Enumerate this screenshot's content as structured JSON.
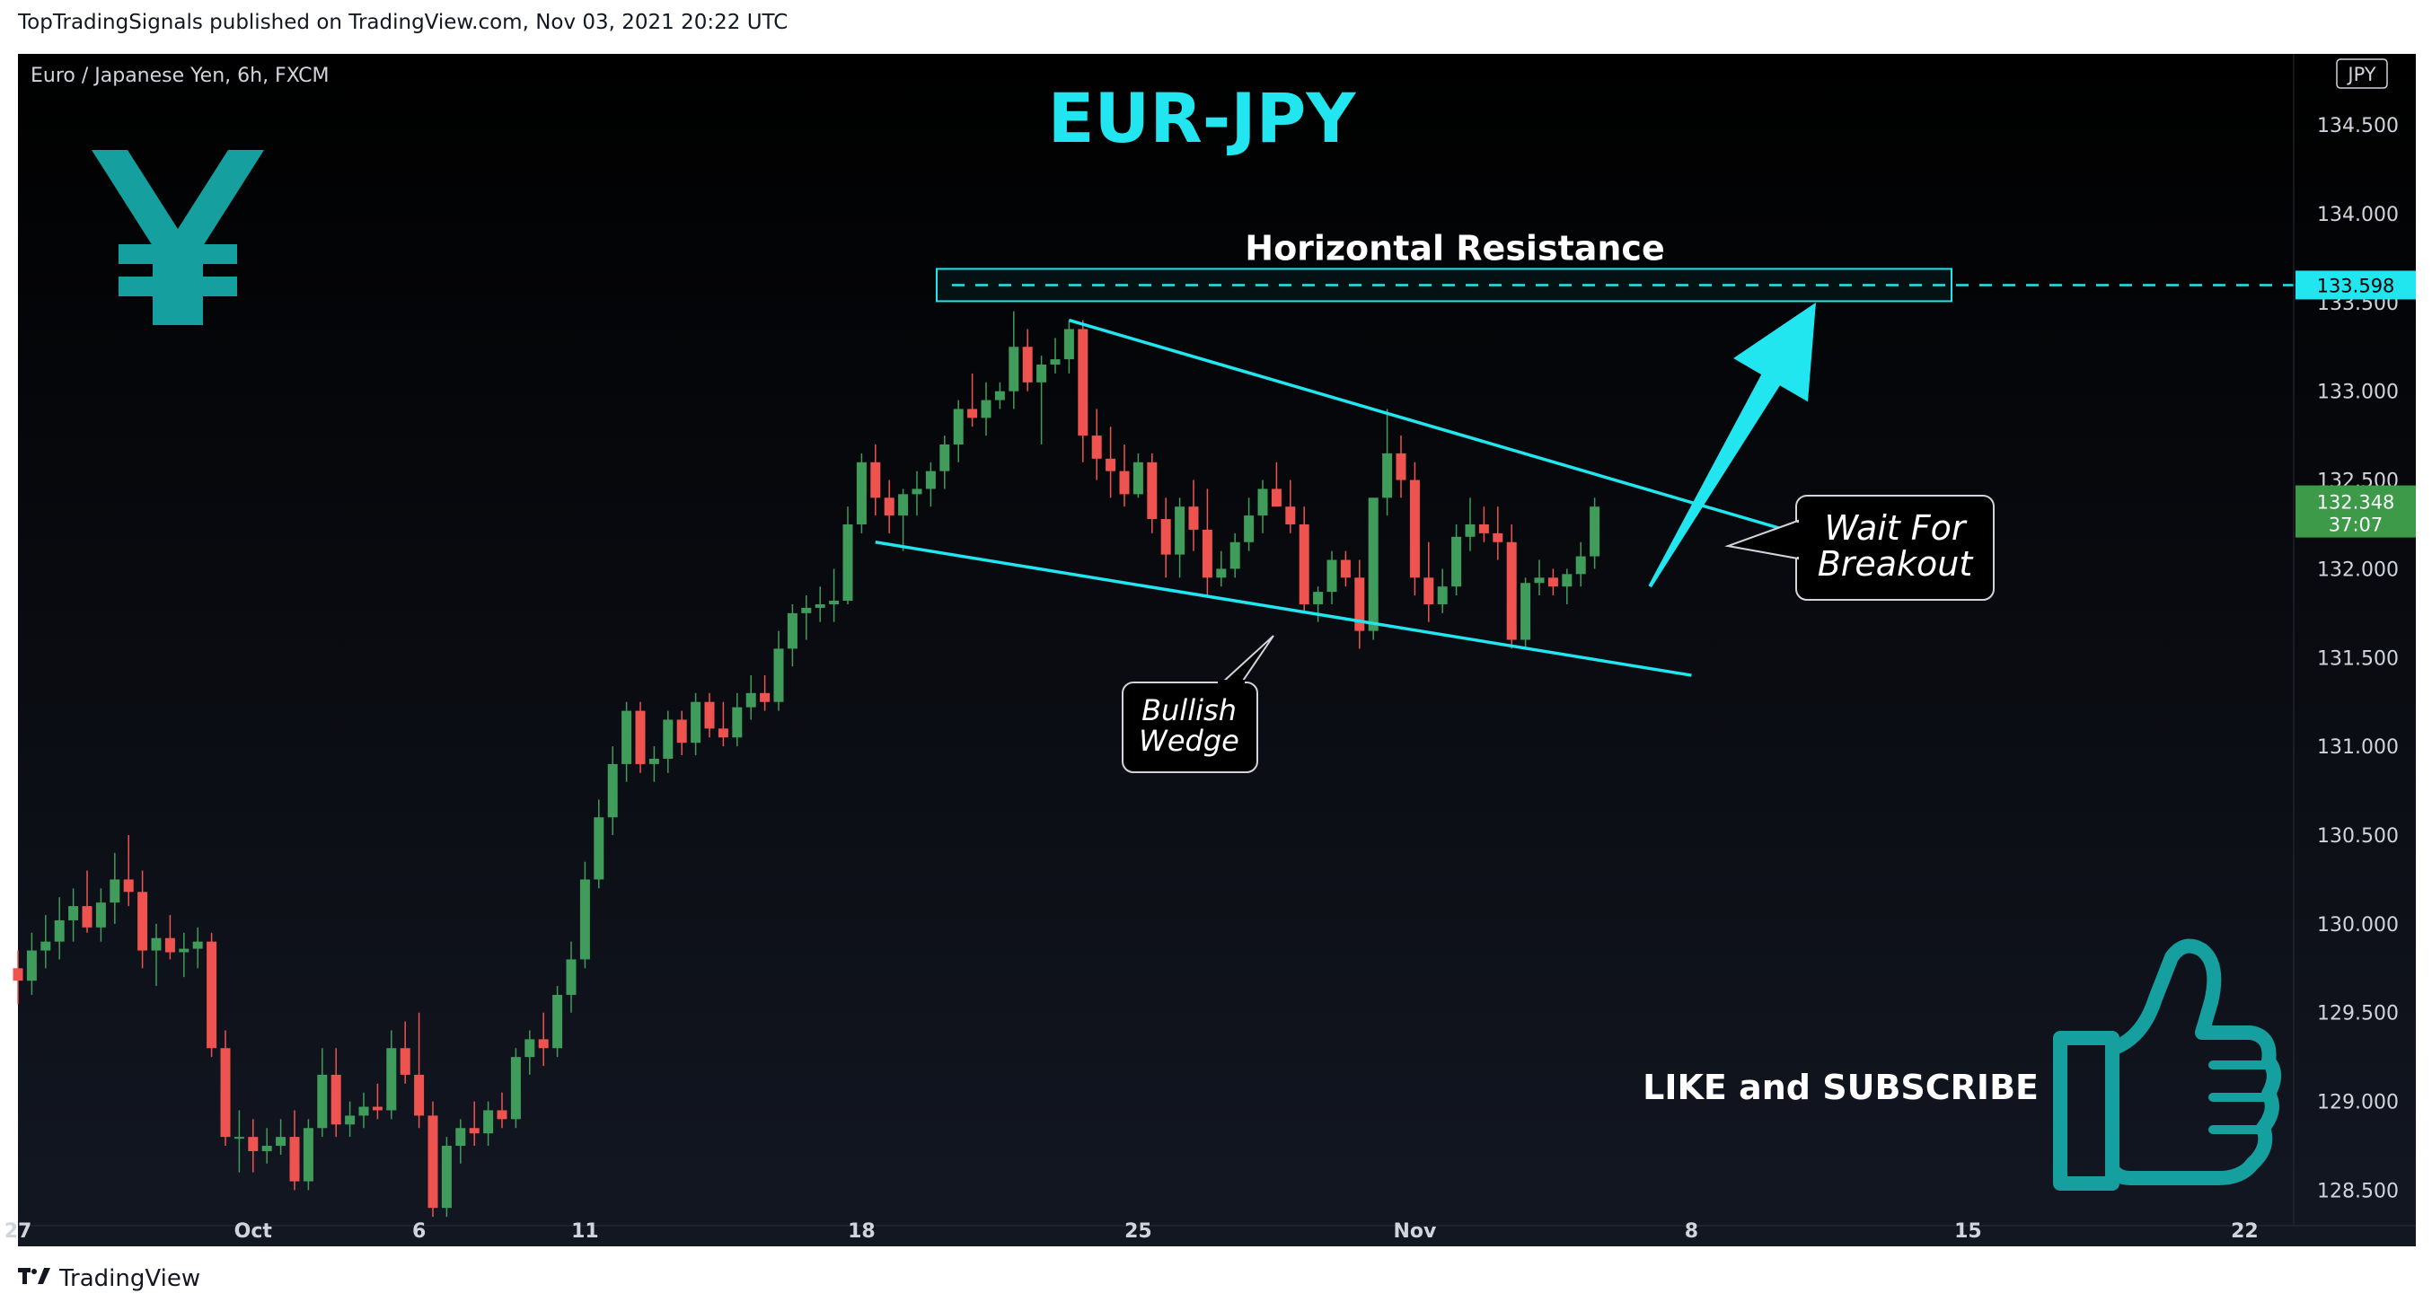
{
  "header": {
    "attribution": "TopTradingSignals published on TradingView.com, Nov 03, 2021 20:22 UTC"
  },
  "footer": {
    "brand": "TradingView"
  },
  "colors": {
    "up": "#26a69a",
    "up_candle": "#3f9c5b",
    "down": "#ef5350",
    "accent": "#21e6f0",
    "price_tag_bg": "#3d9a48",
    "annotation_bg": "#000000"
  },
  "icons": [
    "yen-icon",
    "thumbs-up-icon",
    "tradingview-logo-icon"
  ],
  "chart_data": {
    "type": "candlestick",
    "symbol_label": "Euro / Japanese Yen, 6h, FXCM",
    "title": "EUR-JPY",
    "currency_label": "JPY",
    "y_ticks": [
      "134.500",
      "134.000",
      "133.500",
      "133.000",
      "132.500",
      "132.000",
      "131.500",
      "131.000",
      "130.500",
      "130.000",
      "129.500",
      "129.000",
      "128.500"
    ],
    "ylim": [
      128.3,
      134.9
    ],
    "x_ticks": [
      {
        "label": "27",
        "i": 0
      },
      {
        "label": "Oct",
        "i": 17
      },
      {
        "label": "6",
        "i": 29
      },
      {
        "label": "11",
        "i": 41
      },
      {
        "label": "18",
        "i": 61
      },
      {
        "label": "25",
        "i": 81
      },
      {
        "label": "Nov",
        "i": 101
      },
      {
        "label": "8",
        "i": 121
      },
      {
        "label": "15",
        "i": 141
      },
      {
        "label": "22",
        "i": 161
      }
    ],
    "candles": [
      {
        "o": 129.75,
        "h": 129.85,
        "l": 129.55,
        "c": 129.68
      },
      {
        "o": 129.68,
        "h": 129.95,
        "l": 129.6,
        "c": 129.85
      },
      {
        "o": 129.85,
        "h": 130.05,
        "l": 129.75,
        "c": 129.9
      },
      {
        "o": 129.9,
        "h": 130.15,
        "l": 129.8,
        "c": 130.02
      },
      {
        "o": 130.02,
        "h": 130.2,
        "l": 129.9,
        "c": 130.1
      },
      {
        "o": 130.1,
        "h": 130.3,
        "l": 129.95,
        "c": 129.98
      },
      {
        "o": 129.98,
        "h": 130.2,
        "l": 129.9,
        "c": 130.12
      },
      {
        "o": 130.12,
        "h": 130.4,
        "l": 130.0,
        "c": 130.25
      },
      {
        "o": 130.25,
        "h": 130.5,
        "l": 130.1,
        "c": 130.18
      },
      {
        "o": 130.18,
        "h": 130.3,
        "l": 129.75,
        "c": 129.85
      },
      {
        "o": 129.85,
        "h": 130.0,
        "l": 129.65,
        "c": 129.92
      },
      {
        "o": 129.92,
        "h": 130.05,
        "l": 129.8,
        "c": 129.84
      },
      {
        "o": 129.84,
        "h": 129.95,
        "l": 129.7,
        "c": 129.86
      },
      {
        "o": 129.86,
        "h": 129.98,
        "l": 129.75,
        "c": 129.9
      },
      {
        "o": 129.9,
        "h": 129.95,
        "l": 129.25,
        "c": 129.3
      },
      {
        "o": 129.3,
        "h": 129.4,
        "l": 128.75,
        "c": 128.8
      },
      {
        "o": 128.8,
        "h": 128.95,
        "l": 128.6,
        "c": 128.8
      },
      {
        "o": 128.8,
        "h": 128.9,
        "l": 128.6,
        "c": 128.72
      },
      {
        "o": 128.72,
        "h": 128.85,
        "l": 128.65,
        "c": 128.75
      },
      {
        "o": 128.75,
        "h": 128.9,
        "l": 128.7,
        "c": 128.8
      },
      {
        "o": 128.8,
        "h": 128.95,
        "l": 128.5,
        "c": 128.55
      },
      {
        "o": 128.55,
        "h": 128.9,
        "l": 128.5,
        "c": 128.85
      },
      {
        "o": 128.85,
        "h": 129.3,
        "l": 128.8,
        "c": 129.15
      },
      {
        "o": 129.15,
        "h": 129.3,
        "l": 128.8,
        "c": 128.87
      },
      {
        "o": 128.87,
        "h": 129.0,
        "l": 128.8,
        "c": 128.92
      },
      {
        "o": 128.92,
        "h": 129.05,
        "l": 128.85,
        "c": 128.97
      },
      {
        "o": 128.97,
        "h": 129.1,
        "l": 128.9,
        "c": 128.95
      },
      {
        "o": 128.95,
        "h": 129.4,
        "l": 128.9,
        "c": 129.3
      },
      {
        "o": 129.3,
        "h": 129.45,
        "l": 129.1,
        "c": 129.15
      },
      {
        "o": 129.15,
        "h": 129.5,
        "l": 128.85,
        "c": 128.92
      },
      {
        "o": 128.92,
        "h": 129.0,
        "l": 128.35,
        "c": 128.4
      },
      {
        "o": 128.4,
        "h": 128.8,
        "l": 128.35,
        "c": 128.75
      },
      {
        "o": 128.75,
        "h": 128.9,
        "l": 128.65,
        "c": 128.85
      },
      {
        "o": 128.85,
        "h": 129.0,
        "l": 128.75,
        "c": 128.82
      },
      {
        "o": 128.82,
        "h": 129.0,
        "l": 128.75,
        "c": 128.95
      },
      {
        "o": 128.95,
        "h": 129.05,
        "l": 128.85,
        "c": 128.9
      },
      {
        "o": 128.9,
        "h": 129.3,
        "l": 128.85,
        "c": 129.25
      },
      {
        "o": 129.25,
        "h": 129.4,
        "l": 129.15,
        "c": 129.35
      },
      {
        "o": 129.35,
        "h": 129.5,
        "l": 129.2,
        "c": 129.3
      },
      {
        "o": 129.3,
        "h": 129.65,
        "l": 129.25,
        "c": 129.6
      },
      {
        "o": 129.6,
        "h": 129.9,
        "l": 129.5,
        "c": 129.8
      },
      {
        "o": 129.8,
        "h": 130.35,
        "l": 129.75,
        "c": 130.25
      },
      {
        "o": 130.25,
        "h": 130.7,
        "l": 130.2,
        "c": 130.6
      },
      {
        "o": 130.6,
        "h": 131.0,
        "l": 130.5,
        "c": 130.9
      },
      {
        "o": 130.9,
        "h": 131.25,
        "l": 130.8,
        "c": 131.2
      },
      {
        "o": 131.2,
        "h": 131.25,
        "l": 130.85,
        "c": 130.9
      },
      {
        "o": 130.9,
        "h": 131.0,
        "l": 130.8,
        "c": 130.93
      },
      {
        "o": 130.93,
        "h": 131.2,
        "l": 130.85,
        "c": 131.15
      },
      {
        "o": 131.15,
        "h": 131.2,
        "l": 130.95,
        "c": 131.02
      },
      {
        "o": 131.02,
        "h": 131.3,
        "l": 130.95,
        "c": 131.25
      },
      {
        "o": 131.25,
        "h": 131.3,
        "l": 131.05,
        "c": 131.1
      },
      {
        "o": 131.1,
        "h": 131.25,
        "l": 131.0,
        "c": 131.05
      },
      {
        "o": 131.05,
        "h": 131.3,
        "l": 131.0,
        "c": 131.22
      },
      {
        "o": 131.22,
        "h": 131.4,
        "l": 131.15,
        "c": 131.3
      },
      {
        "o": 131.3,
        "h": 131.4,
        "l": 131.2,
        "c": 131.25
      },
      {
        "o": 131.25,
        "h": 131.65,
        "l": 131.2,
        "c": 131.55
      },
      {
        "o": 131.55,
        "h": 131.8,
        "l": 131.45,
        "c": 131.75
      },
      {
        "o": 131.75,
        "h": 131.85,
        "l": 131.6,
        "c": 131.78
      },
      {
        "o": 131.78,
        "h": 131.9,
        "l": 131.7,
        "c": 131.8
      },
      {
        "o": 131.8,
        "h": 132.0,
        "l": 131.7,
        "c": 131.82
      },
      {
        "o": 131.82,
        "h": 132.35,
        "l": 131.8,
        "c": 132.25
      },
      {
        "o": 132.25,
        "h": 132.65,
        "l": 132.2,
        "c": 132.6
      },
      {
        "o": 132.6,
        "h": 132.7,
        "l": 132.3,
        "c": 132.4
      },
      {
        "o": 132.4,
        "h": 132.5,
        "l": 132.2,
        "c": 132.3
      },
      {
        "o": 132.3,
        "h": 132.45,
        "l": 132.1,
        "c": 132.42
      },
      {
        "o": 132.42,
        "h": 132.55,
        "l": 132.3,
        "c": 132.45
      },
      {
        "o": 132.45,
        "h": 132.6,
        "l": 132.35,
        "c": 132.55
      },
      {
        "o": 132.55,
        "h": 132.75,
        "l": 132.45,
        "c": 132.7
      },
      {
        "o": 132.7,
        "h": 132.95,
        "l": 132.6,
        "c": 132.9
      },
      {
        "o": 132.9,
        "h": 133.1,
        "l": 132.8,
        "c": 132.85
      },
      {
        "o": 132.85,
        "h": 133.05,
        "l": 132.75,
        "c": 132.95
      },
      {
        "o": 132.95,
        "h": 133.05,
        "l": 132.9,
        "c": 133.0
      },
      {
        "o": 133.0,
        "h": 133.45,
        "l": 132.9,
        "c": 133.25
      },
      {
        "o": 133.25,
        "h": 133.35,
        "l": 133.0,
        "c": 133.05
      },
      {
        "o": 133.05,
        "h": 133.2,
        "l": 132.7,
        "c": 133.15
      },
      {
        "o": 133.15,
        "h": 133.3,
        "l": 133.1,
        "c": 133.18
      },
      {
        "o": 133.18,
        "h": 133.4,
        "l": 133.1,
        "c": 133.35
      },
      {
        "o": 133.35,
        "h": 133.4,
        "l": 132.6,
        "c": 132.75
      },
      {
        "o": 132.75,
        "h": 132.9,
        "l": 132.5,
        "c": 132.62
      },
      {
        "o": 132.62,
        "h": 132.8,
        "l": 132.4,
        "c": 132.55
      },
      {
        "o": 132.55,
        "h": 132.7,
        "l": 132.35,
        "c": 132.42
      },
      {
        "o": 132.42,
        "h": 132.65,
        "l": 132.4,
        "c": 132.6
      },
      {
        "o": 132.6,
        "h": 132.65,
        "l": 132.2,
        "c": 132.28
      },
      {
        "o": 132.28,
        "h": 132.4,
        "l": 131.95,
        "c": 132.08
      },
      {
        "o": 132.08,
        "h": 132.4,
        "l": 131.95,
        "c": 132.35
      },
      {
        "o": 132.35,
        "h": 132.5,
        "l": 132.1,
        "c": 132.22
      },
      {
        "o": 132.22,
        "h": 132.45,
        "l": 131.85,
        "c": 131.95
      },
      {
        "o": 131.95,
        "h": 132.1,
        "l": 131.9,
        "c": 132.0
      },
      {
        "o": 132.0,
        "h": 132.2,
        "l": 131.95,
        "c": 132.15
      },
      {
        "o": 132.15,
        "h": 132.4,
        "l": 132.1,
        "c": 132.3
      },
      {
        "o": 132.3,
        "h": 132.5,
        "l": 132.2,
        "c": 132.45
      },
      {
        "o": 132.45,
        "h": 132.6,
        "l": 132.35,
        "c": 132.35
      },
      {
        "o": 132.35,
        "h": 132.5,
        "l": 132.2,
        "c": 132.25
      },
      {
        "o": 132.25,
        "h": 132.35,
        "l": 131.75,
        "c": 131.8
      },
      {
        "o": 131.8,
        "h": 131.9,
        "l": 131.7,
        "c": 131.87
      },
      {
        "o": 131.87,
        "h": 132.1,
        "l": 131.8,
        "c": 132.05
      },
      {
        "o": 132.05,
        "h": 132.1,
        "l": 131.9,
        "c": 131.95
      },
      {
        "o": 131.95,
        "h": 132.05,
        "l": 131.55,
        "c": 131.65
      },
      {
        "o": 131.65,
        "h": 132.4,
        "l": 131.6,
        "c": 132.4
      },
      {
        "o": 132.4,
        "h": 132.9,
        "l": 132.3,
        "c": 132.65
      },
      {
        "o": 132.65,
        "h": 132.75,
        "l": 132.4,
        "c": 132.5
      },
      {
        "o": 132.5,
        "h": 132.6,
        "l": 131.85,
        "c": 131.95
      },
      {
        "o": 131.95,
        "h": 132.15,
        "l": 131.7,
        "c": 131.8
      },
      {
        "o": 131.8,
        "h": 132.0,
        "l": 131.75,
        "c": 131.9
      },
      {
        "o": 131.9,
        "h": 132.25,
        "l": 131.85,
        "c": 132.18
      },
      {
        "o": 132.18,
        "h": 132.4,
        "l": 132.1,
        "c": 132.25
      },
      {
        "o": 132.25,
        "h": 132.35,
        "l": 132.15,
        "c": 132.2
      },
      {
        "o": 132.2,
        "h": 132.35,
        "l": 132.05,
        "c": 132.15
      },
      {
        "o": 132.15,
        "h": 132.25,
        "l": 131.55,
        "c": 131.6
      },
      {
        "o": 131.6,
        "h": 131.95,
        "l": 131.55,
        "c": 131.92
      },
      {
        "o": 131.92,
        "h": 132.05,
        "l": 131.85,
        "c": 131.95
      },
      {
        "o": 131.95,
        "h": 132.0,
        "l": 131.85,
        "c": 131.9
      },
      {
        "o": 131.9,
        "h": 132.0,
        "l": 131.8,
        "c": 131.97
      },
      {
        "o": 131.97,
        "h": 132.15,
        "l": 131.9,
        "c": 132.07
      },
      {
        "o": 132.07,
        "h": 132.4,
        "l": 132.0,
        "c": 132.35
      }
    ],
    "annotations": {
      "horizontal_resistance_label": "Horizontal Resistance",
      "resistance_level": 133.598,
      "last_price_tag": "132.348",
      "countdown": "37:07",
      "bullish_wedge_label": [
        "Bullish",
        "Wedge"
      ],
      "wait_for_breakout_label": [
        "Wait For",
        "Breakout"
      ],
      "cta_label": "LIKE and SUBSCRIBE",
      "upper_trendline": [
        [
          76,
          133.4
        ],
        [
          133,
          132.1
        ]
      ],
      "lower_trendline": [
        [
          62,
          132.15
        ],
        [
          121,
          131.4
        ]
      ],
      "arrow": {
        "from": [
          118,
          131.9
        ],
        "to": [
          130,
          133.5
        ]
      }
    }
  }
}
